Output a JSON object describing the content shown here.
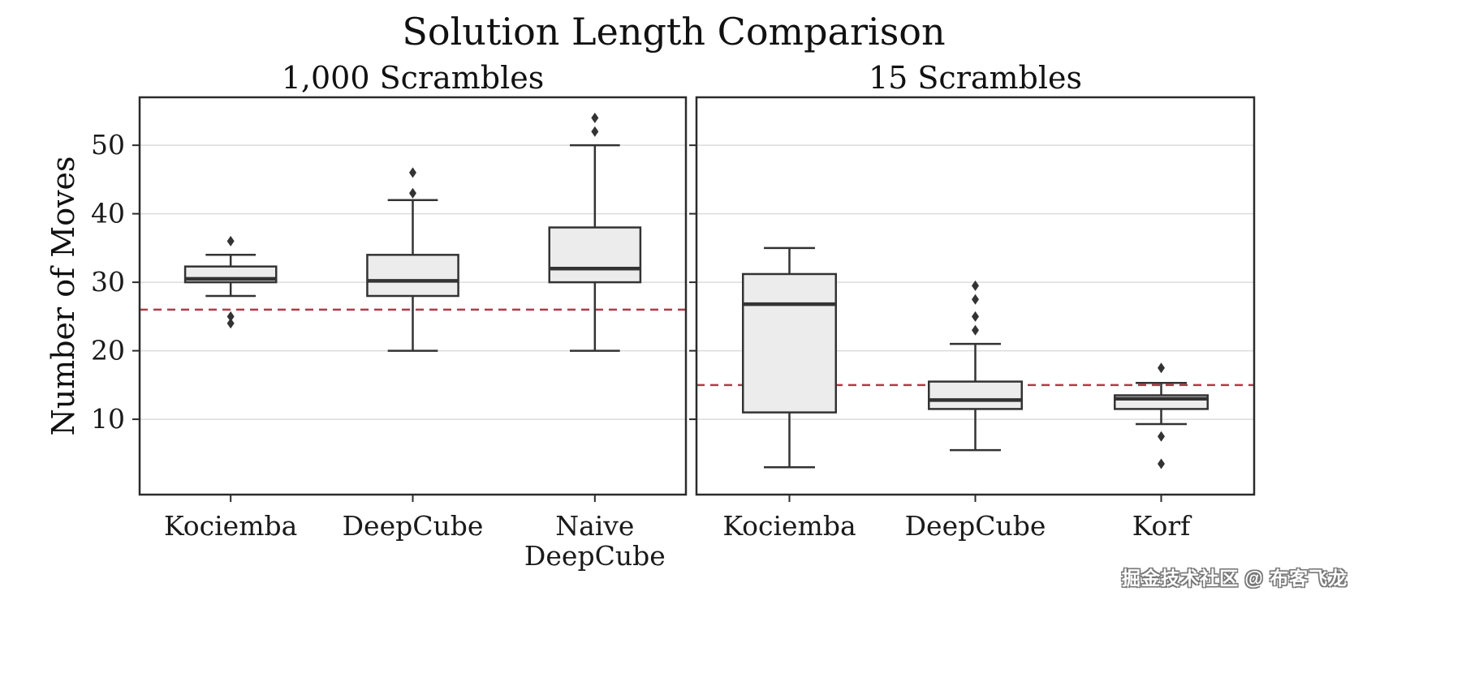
{
  "title": "Solution Length Comparison",
  "watermark": {
    "text": "掘金技术社区 @ 布客飞龙"
  },
  "style": {
    "box_fill": "#ececec",
    "box_stroke": "#333333",
    "median_color": "#333333",
    "grid_color": "#dcdcdc",
    "frame_color": "#2b2b2b",
    "reference_color": "#b03a48",
    "tick_label_color": "#1a1a1a"
  },
  "chart_data": [
    {
      "type": "box",
      "title": "1,000 Scrambles",
      "ylabel": "Number of Moves",
      "xlabel": "",
      "ylim": [
        -1,
        57
      ],
      "yticks": [
        10,
        20,
        30,
        40,
        50
      ],
      "grid": true,
      "reference_line": {
        "y": 26,
        "style": "dashed"
      },
      "categories": [
        "Kociemba",
        "DeepCube",
        "Naive\nDeepCube"
      ],
      "boxes": [
        {
          "label": "Kociemba",
          "whisker_low": 28,
          "q1": 30,
          "median": 30.5,
          "q3": 32.3,
          "whisker_high": 34,
          "outliers": [
            36,
            25,
            24
          ]
        },
        {
          "label": "DeepCube",
          "whisker_low": 20,
          "q1": 28,
          "median": 30.2,
          "q3": 34,
          "whisker_high": 42,
          "outliers": [
            46,
            43
          ]
        },
        {
          "label": "Naive\nDeepCube",
          "whisker_low": 20,
          "q1": 30,
          "median": 32,
          "q3": 38,
          "whisker_high": 50,
          "outliers": [
            54,
            52
          ]
        }
      ]
    },
    {
      "type": "box",
      "title": "15 Scrambles",
      "ylabel": "",
      "xlabel": "",
      "ylim": [
        -1,
        57
      ],
      "yticks": [
        10,
        20,
        30,
        40,
        50
      ],
      "grid": true,
      "reference_line": {
        "y": 15,
        "style": "dashed"
      },
      "categories": [
        "Kociemba",
        "DeepCube",
        "Korf"
      ],
      "boxes": [
        {
          "label": "Kociemba",
          "whisker_low": 3,
          "q1": 11,
          "median": 26.8,
          "q3": 31.2,
          "whisker_high": 35,
          "outliers": []
        },
        {
          "label": "DeepCube",
          "whisker_low": 5.5,
          "q1": 11.5,
          "median": 12.8,
          "q3": 15.5,
          "whisker_high": 21,
          "outliers": [
            29.5,
            27.5,
            25,
            23
          ]
        },
        {
          "label": "Korf",
          "whisker_low": 9.3,
          "q1": 11.5,
          "median": 13,
          "q3": 13.5,
          "whisker_high": 15.3,
          "outliers": [
            17.5,
            7.5,
            3.5
          ]
        }
      ]
    }
  ]
}
